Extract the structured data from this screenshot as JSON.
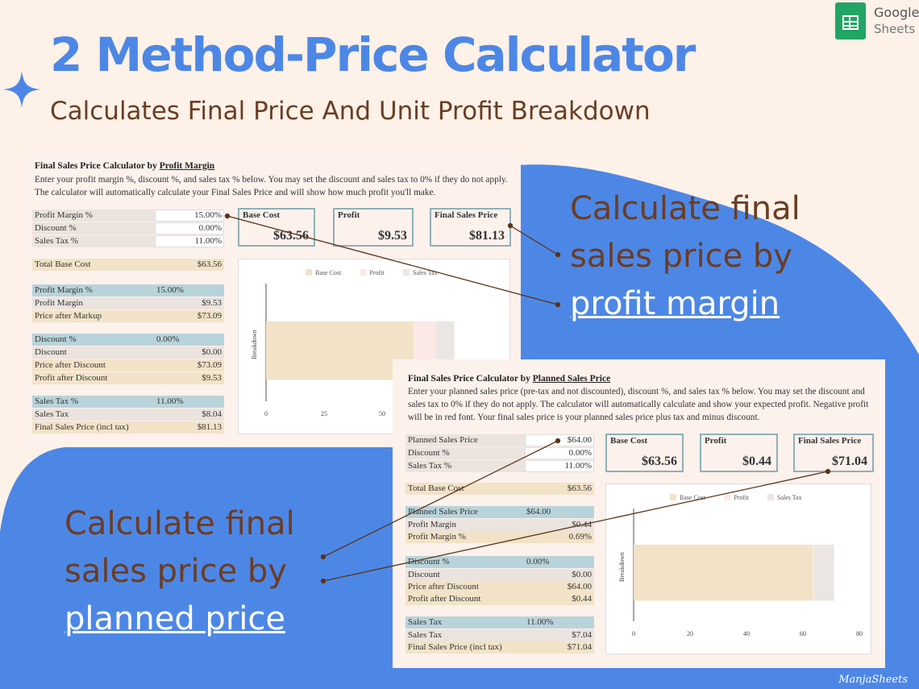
{
  "header": {
    "title": "2 Method-Price Calculator",
    "subtitle": "Calculates Final Price And Unit Profit Breakdown"
  },
  "brand": {
    "name_line1": "Google",
    "name_line2": "Sheets",
    "icon": "google-sheets-icon"
  },
  "colors": {
    "accent_blue": "#4d87e6",
    "brown_text": "#6b3d22",
    "panel_bg": "#fdf1ec",
    "sheets_green": "#21a464"
  },
  "annotations": {
    "margin": {
      "line1": "Calculate final",
      "line2": "sales price by",
      "link": "profit margin"
    },
    "planned": {
      "line1": "Calculate final",
      "line2": "sales price by",
      "link": "planned price"
    }
  },
  "calc_margin": {
    "title_prefix": "Final Sales Price Calculator by ",
    "title_link": "Profit Margin",
    "description": "Enter your profit margin %, discount %, and sales tax % below. You may set the discount and sales tax to 0% if they do not apply. The calculator will automatically calculate your Final Sales Price and will show how much profit you'll make.",
    "inputs": [
      {
        "label": "Profit Margin %",
        "value": "15.00%"
      },
      {
        "label": "Discount %",
        "value": "0.00%"
      },
      {
        "label": "Sales Tax %",
        "value": "11.00%"
      }
    ],
    "total_base_cost": {
      "label": "Total Base Cost",
      "value": "$63.56"
    },
    "margin_section": [
      {
        "label": "Profit Margin %",
        "value": "15.00%"
      },
      {
        "label": "Profit Margin",
        "value": "$9.53"
      },
      {
        "label": "Price after Markup",
        "value": "$73.09"
      }
    ],
    "discount_section": [
      {
        "label": "Discount %",
        "value": "0.00%"
      },
      {
        "label": "Discount",
        "value": "$0.00"
      },
      {
        "label": "Price after Discount",
        "value": "$73.09"
      },
      {
        "label": "Profit after Discount",
        "value": "$9.53"
      }
    ],
    "tax_section": [
      {
        "label": "Sales Tax %",
        "value": "11.00%"
      },
      {
        "label": "Sales Tax",
        "value": "$8.04"
      },
      {
        "label": "Final Sales Price (incl tax)",
        "value": "$81.13"
      }
    ],
    "boxes": [
      {
        "label": "Base Cost",
        "value": "$63.56"
      },
      {
        "label": "Profit",
        "value": "$9.53"
      },
      {
        "label": "Final Sales Price",
        "value": "$81.13"
      }
    ]
  },
  "calc_planned": {
    "title_prefix": "Final Sales Price Calculator by ",
    "title_link": "Planned Sales Price",
    "description": "Enter your planned sales price (pre-tax and not discounted), discount %, and sales tax % below. You may set the discount and sales tax to 0% if they do not apply. The calculator will automatically calculate and show your expected profit. Negative profit will be in red font. Your final sales price is your planned sales price plus tax and minus discount.",
    "inputs": [
      {
        "label": "Planned Sales Price",
        "value": "$64.00"
      },
      {
        "label": "Discount %",
        "value": "0.00%"
      },
      {
        "label": "Sales Tax %",
        "value": "11.00%"
      }
    ],
    "total_base_cost": {
      "label": "Total Base Cost",
      "value": "$63.56"
    },
    "price_section": [
      {
        "label": "Planned Sales Price",
        "value": "$64.00"
      },
      {
        "label": "Profit Margin",
        "value": "$0.44"
      },
      {
        "label": "Profit Margin %",
        "value": "0.69%"
      }
    ],
    "discount_section": [
      {
        "label": "Discount %",
        "value": "0.00%"
      },
      {
        "label": "Discount",
        "value": "$0.00"
      },
      {
        "label": "Price after Discount",
        "value": "$64.00"
      },
      {
        "label": "Profit after Discount",
        "value": "$0.44"
      }
    ],
    "tax_section": [
      {
        "label": "Sales Tax",
        "value": "11.00%"
      },
      {
        "label": "Sales Tax",
        "value": "$7.04"
      },
      {
        "label": "Final Sales Price (incl tax)",
        "value": "$71.04"
      }
    ],
    "boxes": [
      {
        "label": "Base Cost",
        "value": "$63.56"
      },
      {
        "label": "Profit",
        "value": "$0.44"
      },
      {
        "label": "Final Sales Price",
        "value": "$71.04"
      }
    ]
  },
  "chart_data": [
    {
      "type": "bar",
      "orientation": "horizontal",
      "stacked": true,
      "categories": [
        "Breakdown"
      ],
      "ylabel": "Breakdown",
      "series": [
        {
          "name": "Base Cost",
          "values": [
            63.56
          ],
          "color": "#f2e3c8"
        },
        {
          "name": "Profit",
          "values": [
            9.53
          ],
          "color": "#fbe9e6"
        },
        {
          "name": "Sales Tax",
          "values": [
            8.04
          ],
          "color": "#ebe6e3"
        }
      ],
      "x_ticks": [
        "0",
        "25",
        "50"
      ],
      "xlim": [
        0,
        100
      ],
      "legend": "top"
    },
    {
      "type": "bar",
      "orientation": "horizontal",
      "stacked": true,
      "categories": [
        "Breakdown"
      ],
      "ylabel": "Breakdown",
      "series": [
        {
          "name": "Base Cost",
          "values": [
            63.56
          ],
          "color": "#f2e3c8"
        },
        {
          "name": "Profit",
          "values": [
            0.44
          ],
          "color": "#fbe9e6"
        },
        {
          "name": "Sales Tax",
          "values": [
            7.04
          ],
          "color": "#ebe6e3"
        }
      ],
      "x_ticks": [
        "0",
        "20",
        "40",
        "60",
        "80"
      ],
      "xlim": [
        0,
        80
      ],
      "legend": "top"
    }
  ],
  "signature": "ManjaSheets"
}
